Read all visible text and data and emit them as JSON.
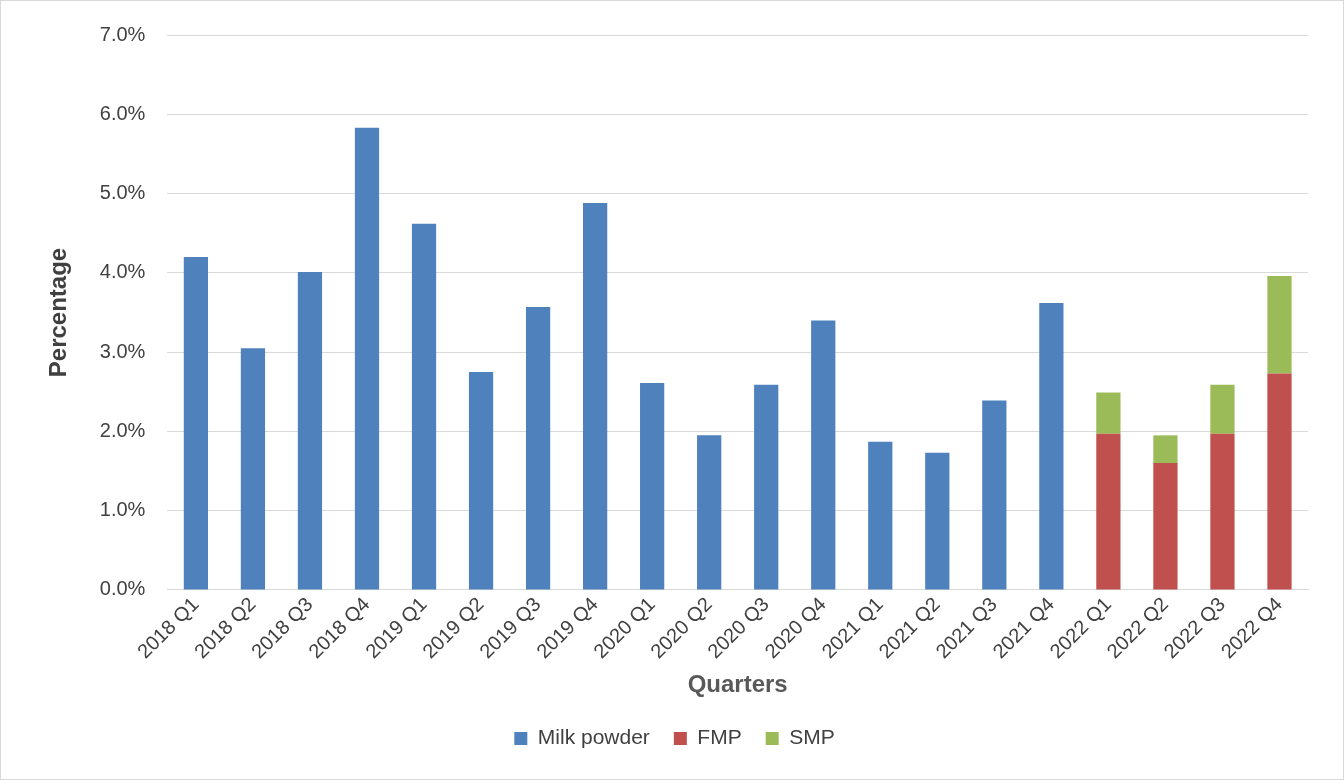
{
  "chart_data": {
    "type": "bar",
    "stacked": true,
    "xlabel": "Quarters",
    "ylabel": "Percentage",
    "categories": [
      "2018 Q1",
      "2018 Q2",
      "2018 Q3",
      "2018 Q4",
      "2019 Q1",
      "2019 Q2",
      "2019 Q3",
      "2019 Q4",
      "2020 Q1",
      "2020 Q2",
      "2020 Q3",
      "2020 Q4",
      "2021 Q1",
      "2021 Q2",
      "2021 Q3",
      "2021 Q4",
      "2022 Q1",
      "2022 Q2",
      "2022 Q3",
      "2022 Q4"
    ],
    "series": [
      {
        "name": "Milk powder",
        "color": "#4f81bd",
        "values": [
          4.2,
          3.05,
          4.01,
          5.83,
          4.62,
          2.75,
          3.57,
          4.88,
          2.61,
          1.95,
          2.59,
          3.4,
          1.87,
          1.73,
          2.39,
          3.62,
          null,
          null,
          null,
          null
        ]
      },
      {
        "name": "FMP",
        "color": "#c0504d",
        "values": [
          null,
          null,
          null,
          null,
          null,
          null,
          null,
          null,
          null,
          null,
          null,
          null,
          null,
          null,
          null,
          null,
          1.97,
          1.6,
          1.97,
          2.73
        ]
      },
      {
        "name": "SMP",
        "color": "#9bbb59",
        "values": [
          null,
          null,
          null,
          null,
          null,
          null,
          null,
          null,
          null,
          null,
          null,
          null,
          null,
          null,
          null,
          null,
          0.52,
          0.35,
          0.62,
          1.23
        ]
      }
    ],
    "ylim": [
      0,
      7
    ],
    "yticks": [
      {
        "value": 0,
        "label": "0.0%"
      },
      {
        "value": 1,
        "label": "1.0%"
      },
      {
        "value": 2,
        "label": "2.0%"
      },
      {
        "value": 3,
        "label": "3.0%"
      },
      {
        "value": 4,
        "label": "4.0%"
      },
      {
        "value": 5,
        "label": "5.0%"
      },
      {
        "value": 6,
        "label": "6.0%"
      },
      {
        "value": 7,
        "label": "7.0%"
      }
    ],
    "grid": "y",
    "legend": "bottom"
  }
}
